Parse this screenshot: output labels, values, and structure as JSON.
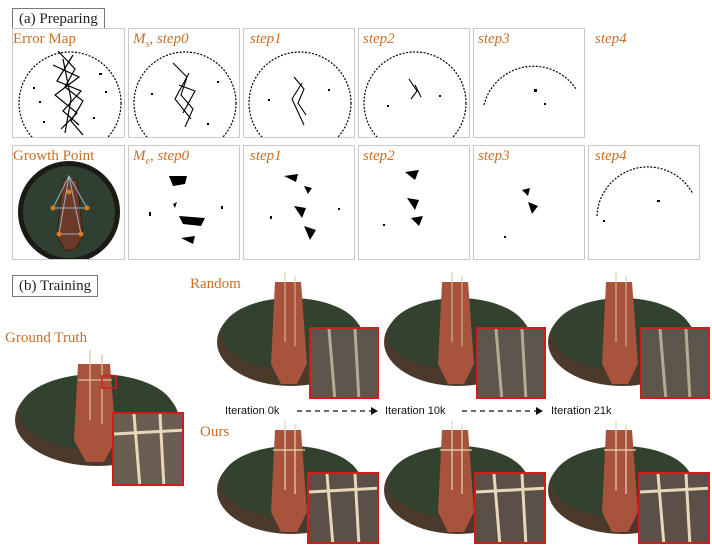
{
  "section_a": {
    "label": "(a) Preparing"
  },
  "section_b": {
    "label": "(b) Training"
  },
  "row1": {
    "row_label": "Error Map",
    "captions": [
      "",
      "M_s, step0",
      "step1",
      "step2",
      "step3",
      "step4"
    ]
  },
  "row2": {
    "row_label": "Growth Point",
    "captions": [
      "",
      "M_e, step0",
      "step1",
      "step2",
      "step3",
      "step4"
    ]
  },
  "caption_parts": {
    "ms_main": "M",
    "ms_sub": "s",
    "me_main": "M",
    "me_sub": "e",
    "step0_suffix": ", step0"
  },
  "training": {
    "ground_truth": "Ground Truth",
    "random": "Random",
    "ours": "Ours",
    "iterations": [
      "Iteration 0k",
      "Iteration 10k",
      "Iteration 21k"
    ]
  },
  "colors": {
    "caption_orange": "#c8702a",
    "inset_border": "#d21c1c",
    "scene_dark": "#3a3128"
  }
}
